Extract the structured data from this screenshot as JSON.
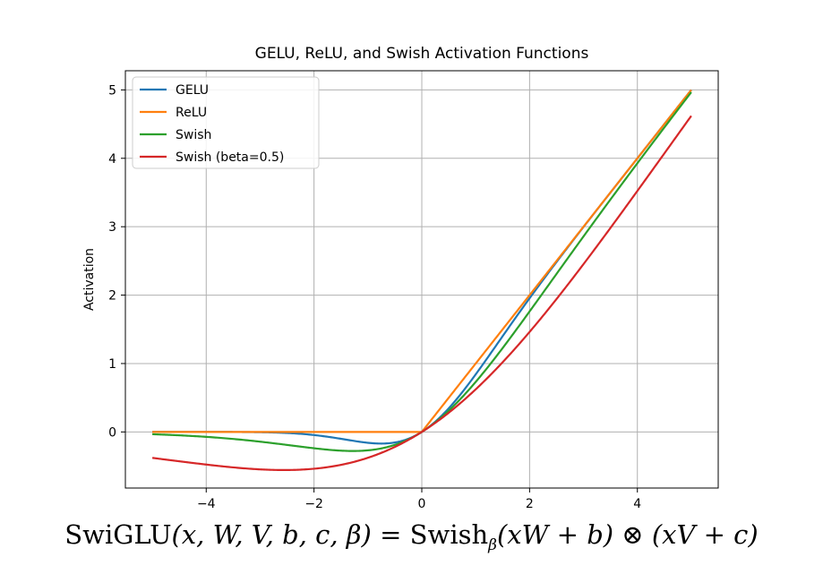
{
  "chart_data": {
    "type": "line",
    "title": "GELU, ReLU, and Swish Activation Functions",
    "xlabel": "",
    "ylabel": "Activation",
    "xlim": [
      -5.5,
      5.5
    ],
    "ylim": [
      -0.82,
      5.28
    ],
    "xticks": [
      -4,
      -2,
      0,
      2,
      4
    ],
    "xtick_labels": [
      "−4",
      "−2",
      "0",
      "2",
      "4"
    ],
    "yticks": [
      0,
      1,
      2,
      3,
      4,
      5
    ],
    "ytick_labels": [
      "0",
      "1",
      "2",
      "3",
      "4",
      "5"
    ],
    "grid": true,
    "legend_position": "upper-left",
    "x_range": [
      -5,
      5
    ],
    "series": [
      {
        "name": "GELU",
        "color": "#1f77b4",
        "function": "gelu",
        "sample_points": [
          [
            -5,
            0.0
          ],
          [
            -2,
            -0.045
          ],
          [
            -1,
            -0.159
          ],
          [
            -0.75,
            -0.17
          ],
          [
            0,
            0
          ],
          [
            1,
            0.841
          ],
          [
            2,
            1.955
          ],
          [
            5,
            5.0
          ]
        ]
      },
      {
        "name": "ReLU",
        "color": "#ff7f0e",
        "function": "relu",
        "sample_points": [
          [
            -5,
            0
          ],
          [
            0,
            0
          ],
          [
            5,
            5
          ]
        ]
      },
      {
        "name": "Swish",
        "color": "#2ca02c",
        "function": "swish",
        "beta": 1.0,
        "sample_points": [
          [
            -5,
            -0.033
          ],
          [
            -2,
            -0.238
          ],
          [
            -1.28,
            -0.278
          ],
          [
            0,
            0
          ],
          [
            2,
            1.762
          ],
          [
            5,
            4.967
          ]
        ]
      },
      {
        "name": "Swish (beta=0.5)",
        "color": "#d62728",
        "function": "swish",
        "beta": 0.5,
        "sample_points": [
          [
            -5,
            -0.379
          ],
          [
            -2.56,
            -0.557
          ],
          [
            -1,
            -0.378
          ],
          [
            0,
            0
          ],
          [
            2,
            1.462
          ],
          [
            5,
            4.621
          ]
        ]
      }
    ]
  },
  "formula": {
    "lhs": "SwiGLU",
    "args": "(x, W, V, b, c, β)",
    "equals": " = ",
    "fn": "Swish",
    "sub": "β",
    "term1": "(xW + b)",
    "op": " ⊗ ",
    "term2": "(xV + c)"
  }
}
